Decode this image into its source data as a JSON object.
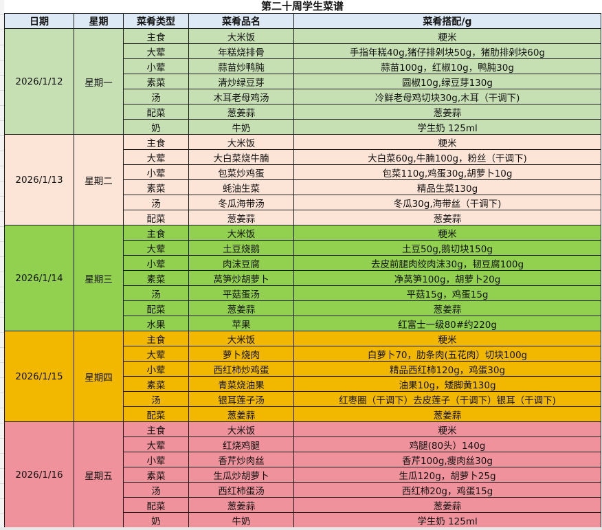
{
  "title": "第二十周学生菜谱",
  "headers": [
    "日期",
    "星期",
    "菜肴类型",
    "菜肴品名",
    "菜肴搭配/g"
  ],
  "colors": {
    "header": "#dde9f5",
    "day1": "#c6e0b4",
    "day2": "#fce4d6",
    "day3": "#92d050",
    "day4": "#f2b800",
    "day5": "#f0929b"
  },
  "days": [
    {
      "date": "2026/1/12",
      "weekday": "星期一",
      "color": "#c6e0b4",
      "rows": [
        {
          "type": "主食",
          "name": "大米饭",
          "ingredients": "粳米"
        },
        {
          "type": "大荤",
          "name": "年糕烧排骨",
          "ingredients": "手指年糕40g,猪仔排剁块50g，猪肋排剁块60g"
        },
        {
          "type": "小荤",
          "name": "蒜苗炒鸭肫",
          "ingredients": "蒜苗100g，红椒10g，鸭肫30g"
        },
        {
          "type": "素菜",
          "name": "清炒绿豆芽",
          "ingredients": "圆椒10g,绿豆芽130g"
        },
        {
          "type": "汤",
          "name": "木耳老母鸡汤",
          "ingredients": "冷鲜老母鸡切块30g,木耳（干调下)"
        },
        {
          "type": "配菜",
          "name": "葱姜蒜",
          "ingredients": "葱姜蒜"
        },
        {
          "type": "奶",
          "name": "牛奶",
          "ingredients": "学生奶 125ml"
        }
      ]
    },
    {
      "date": "2026/1/13",
      "weekday": "星期二",
      "color": "#fce4d6",
      "rows": [
        {
          "type": "主食",
          "name": "大米饭",
          "ingredients": "粳米"
        },
        {
          "type": "大荤",
          "name": "大白菜烧牛腩",
          "ingredients": "大白菜60g,牛腩100g，粉丝（干调下)"
        },
        {
          "type": "小荤",
          "name": "包菜炒鸡蛋",
          "ingredients": "包菜110g,鸡蛋30g,胡萝卜10g"
        },
        {
          "type": "素菜",
          "name": "蚝油生菜",
          "ingredients": "精品生菜130g"
        },
        {
          "type": "汤",
          "name": "冬瓜海带汤",
          "ingredients": "冬瓜30g,海带丝（干调下)"
        },
        {
          "type": "配菜",
          "name": "葱姜蒜",
          "ingredients": "葱姜蒜"
        }
      ]
    },
    {
      "date": "2026/1/14",
      "weekday": "星期三",
      "color": "#92d050",
      "rows": [
        {
          "type": "主食",
          "name": "大米饭",
          "ingredients": "粳米"
        },
        {
          "type": "大荤",
          "name": "土豆烧鹅",
          "ingredients": "土豆50g,鹅切块150g"
        },
        {
          "type": "小荤",
          "name": "肉沫豆腐",
          "ingredients": "去皮前腿肉绞肉沫30g，韧豆腐100g"
        },
        {
          "type": "素菜",
          "name": "莴笋炒胡萝卜",
          "ingredients": "净莴笋100g，胡萝卜20g"
        },
        {
          "type": "汤",
          "name": "平菇蛋汤",
          "ingredients": "平菇15g，鸡蛋15g"
        },
        {
          "type": "配菜",
          "name": "葱姜蒜",
          "ingredients": "葱姜蒜"
        },
        {
          "type": "水果",
          "name": "苹果",
          "ingredients": "红富士一级80#约220g"
        }
      ]
    },
    {
      "date": "2026/1/15",
      "weekday": "星期四",
      "color": "#f2b800",
      "rows": [
        {
          "type": "主食",
          "name": "大米饭",
          "ingredients": "粳米"
        },
        {
          "type": "大荤",
          "name": "萝卜烧肉",
          "ingredients": "白萝卜70，肋条肉(五花肉）切块100g"
        },
        {
          "type": "小荤",
          "name": "西红柿炒鸡蛋",
          "ingredients": "精品西红柿120g，鸡蛋30g"
        },
        {
          "type": "素菜",
          "name": "青菜烧油果",
          "ingredients": "油果10g，矮脚黄130g"
        },
        {
          "type": "汤",
          "name": "银耳莲子汤",
          "ingredients": "红枣圈（干调下）去皮莲子（干调下）银耳（干调下)"
        },
        {
          "type": "配菜",
          "name": "葱姜蒜",
          "ingredients": "葱姜蒜"
        }
      ]
    },
    {
      "date": "2026/1/16",
      "weekday": "星期五",
      "color": "#f0929b",
      "rows": [
        {
          "type": "主食",
          "name": "大米饭",
          "ingredients": "粳米"
        },
        {
          "type": "大荤",
          "name": "红烧鸡腿",
          "ingredients": "鸡腿(80头）140g"
        },
        {
          "type": "小荤",
          "name": "香芹炒肉丝",
          "ingredients": "香芹100g,瘦肉丝30g"
        },
        {
          "type": "素菜",
          "name": "生瓜炒胡萝卜",
          "ingredients": "生瓜120g，胡萝卜25g"
        },
        {
          "type": "汤",
          "name": "西红柿蛋汤",
          "ingredients": "西红柿20g，鸡蛋15g"
        },
        {
          "type": "配菜",
          "name": "葱姜蒜",
          "ingredients": "葱姜蒜"
        },
        {
          "type": "奶",
          "name": "牛奶",
          "ingredients": "学生奶 125ml"
        }
      ]
    }
  ]
}
